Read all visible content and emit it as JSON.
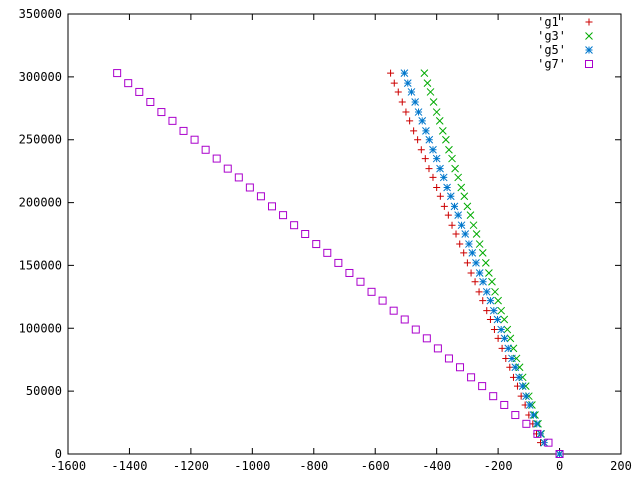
{
  "chart_data": {
    "type": "scatter",
    "title": "",
    "xlabel": "",
    "ylabel": "",
    "xlim": [
      -1600,
      200
    ],
    "ylim": [
      0,
      350000
    ],
    "xticks": [
      -1600,
      -1400,
      -1200,
      -1000,
      -800,
      -600,
      -400,
      -200,
      0,
      200
    ],
    "yticks": [
      0,
      50000,
      100000,
      150000,
      200000,
      250000,
      300000,
      350000
    ],
    "grid": false,
    "legend_position": "top-right",
    "series": [
      {
        "name": "'g1'",
        "marker": "plus",
        "color": "#cc0000",
        "points": [
          [
            -550,
            303000
          ],
          [
            -538,
            295000
          ],
          [
            -525,
            288000
          ],
          [
            -512,
            280000
          ],
          [
            -500,
            272000
          ],
          [
            -488,
            265000
          ],
          [
            -475,
            257000
          ],
          [
            -462,
            250000
          ],
          [
            -450,
            242000
          ],
          [
            -437,
            235000
          ],
          [
            -425,
            227000
          ],
          [
            -412,
            220000
          ],
          [
            -400,
            212000
          ],
          [
            -388,
            205000
          ],
          [
            -375,
            197000
          ],
          [
            -362,
            190000
          ],
          [
            -350,
            182000
          ],
          [
            -337,
            175000
          ],
          [
            -325,
            167000
          ],
          [
            -312,
            160000
          ],
          [
            -300,
            152000
          ],
          [
            -288,
            144000
          ],
          [
            -275,
            137000
          ],
          [
            -262,
            129000
          ],
          [
            -250,
            122000
          ],
          [
            -237,
            114000
          ],
          [
            -225,
            107000
          ],
          [
            -212,
            99000
          ],
          [
            -200,
            92000
          ],
          [
            -187,
            84000
          ],
          [
            -175,
            76000
          ],
          [
            -162,
            69000
          ],
          [
            -150,
            61000
          ],
          [
            -137,
            54000
          ],
          [
            -125,
            46000
          ],
          [
            -112,
            39000
          ],
          [
            -100,
            31000
          ],
          [
            -87,
            24000
          ],
          [
            -75,
            16000
          ],
          [
            -62,
            9000
          ],
          [
            0,
            0
          ]
        ]
      },
      {
        "name": "'g3'",
        "marker": "cross",
        "color": "#00aa00",
        "points": [
          [
            -440,
            303000
          ],
          [
            -430,
            295000
          ],
          [
            -420,
            288000
          ],
          [
            -410,
            280000
          ],
          [
            -400,
            272000
          ],
          [
            -390,
            265000
          ],
          [
            -380,
            257000
          ],
          [
            -370,
            250000
          ],
          [
            -360,
            242000
          ],
          [
            -350,
            235000
          ],
          [
            -340,
            227000
          ],
          [
            -330,
            220000
          ],
          [
            -320,
            212000
          ],
          [
            -310,
            205000
          ],
          [
            -300,
            197000
          ],
          [
            -290,
            190000
          ],
          [
            -280,
            182000
          ],
          [
            -270,
            175000
          ],
          [
            -260,
            167000
          ],
          [
            -250,
            160000
          ],
          [
            -240,
            152000
          ],
          [
            -230,
            144000
          ],
          [
            -220,
            137000
          ],
          [
            -210,
            129000
          ],
          [
            -200,
            122000
          ],
          [
            -190,
            114000
          ],
          [
            -180,
            107000
          ],
          [
            -170,
            99000
          ],
          [
            -160,
            92000
          ],
          [
            -150,
            84000
          ],
          [
            -140,
            76000
          ],
          [
            -130,
            69000
          ],
          [
            -120,
            61000
          ],
          [
            -110,
            54000
          ],
          [
            -100,
            46000
          ],
          [
            -90,
            39000
          ],
          [
            -80,
            31000
          ],
          [
            -70,
            24000
          ],
          [
            -60,
            16000
          ],
          [
            -50,
            9000
          ],
          [
            0,
            0
          ]
        ]
      },
      {
        "name": "'g5'",
        "marker": "star",
        "color": "#0077cc",
        "points": [
          [
            -505,
            303000
          ],
          [
            -494,
            295000
          ],
          [
            -482,
            288000
          ],
          [
            -470,
            280000
          ],
          [
            -459,
            272000
          ],
          [
            -447,
            265000
          ],
          [
            -435,
            257000
          ],
          [
            -424,
            250000
          ],
          [
            -412,
            242000
          ],
          [
            -400,
            235000
          ],
          [
            -389,
            227000
          ],
          [
            -377,
            220000
          ],
          [
            -366,
            212000
          ],
          [
            -354,
            205000
          ],
          [
            -342,
            197000
          ],
          [
            -330,
            190000
          ],
          [
            -319,
            182000
          ],
          [
            -307,
            175000
          ],
          [
            -295,
            167000
          ],
          [
            -284,
            160000
          ],
          [
            -272,
            152000
          ],
          [
            -260,
            144000
          ],
          [
            -249,
            137000
          ],
          [
            -237,
            129000
          ],
          [
            -225,
            122000
          ],
          [
            -214,
            114000
          ],
          [
            -202,
            107000
          ],
          [
            -190,
            99000
          ],
          [
            -179,
            92000
          ],
          [
            -167,
            84000
          ],
          [
            -155,
            76000
          ],
          [
            -144,
            69000
          ],
          [
            -132,
            61000
          ],
          [
            -120,
            54000
          ],
          [
            -109,
            46000
          ],
          [
            -97,
            39000
          ],
          [
            -85,
            31000
          ],
          [
            -74,
            24000
          ],
          [
            -62,
            16000
          ],
          [
            -50,
            9000
          ],
          [
            0,
            0
          ]
        ]
      },
      {
        "name": "'g7'",
        "marker": "square",
        "color": "#aa00cc",
        "points": [
          [
            -1440,
            303000
          ],
          [
            -1404,
            295000
          ],
          [
            -1368,
            288000
          ],
          [
            -1332,
            280000
          ],
          [
            -1296,
            272000
          ],
          [
            -1260,
            265000
          ],
          [
            -1224,
            257000
          ],
          [
            -1188,
            250000
          ],
          [
            -1152,
            242000
          ],
          [
            -1116,
            235000
          ],
          [
            -1080,
            227000
          ],
          [
            -1044,
            220000
          ],
          [
            -1008,
            212000
          ],
          [
            -972,
            205000
          ],
          [
            -936,
            197000
          ],
          [
            -900,
            190000
          ],
          [
            -864,
            182000
          ],
          [
            -828,
            175000
          ],
          [
            -792,
            167000
          ],
          [
            -756,
            160000
          ],
          [
            -720,
            152000
          ],
          [
            -684,
            144000
          ],
          [
            -648,
            137000
          ],
          [
            -612,
            129000
          ],
          [
            -576,
            122000
          ],
          [
            -540,
            114000
          ],
          [
            -504,
            107000
          ],
          [
            -468,
            99000
          ],
          [
            -432,
            92000
          ],
          [
            -396,
            84000
          ],
          [
            -360,
            76000
          ],
          [
            -324,
            69000
          ],
          [
            -288,
            61000
          ],
          [
            -252,
            54000
          ],
          [
            -216,
            46000
          ],
          [
            -180,
            39000
          ],
          [
            -144,
            31000
          ],
          [
            -108,
            24000
          ],
          [
            -72,
            16000
          ],
          [
            -36,
            9000
          ],
          [
            0,
            0
          ]
        ]
      }
    ]
  }
}
